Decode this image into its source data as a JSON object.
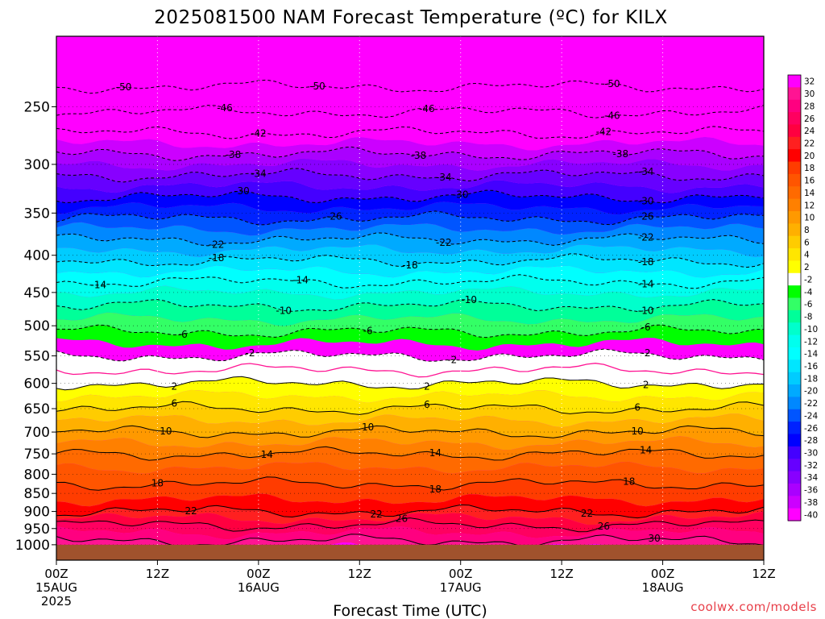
{
  "title": "2025081500 NAM Forecast Temperature (ºC) for KILX",
  "credit": "coolwx.com/models",
  "chart_data": {
    "type": "heatmap",
    "title": "2025081500 NAM Forecast Temperature (ºC) for KILX",
    "xlabel": "Forecast Time (UTC)",
    "ylabel": "",
    "grid": true,
    "legend": "colorbar right",
    "y_scale": "log-pressure (inverted)",
    "x_range_hours": [
      0,
      84
    ],
    "y_range_hPa": [
      1050,
      200
    ],
    "ground_below_hPa": 1000,
    "y_ticks": [
      250,
      300,
      350,
      400,
      450,
      500,
      550,
      600,
      650,
      700,
      750,
      800,
      850,
      900,
      950,
      1000
    ],
    "x_ticks": [
      {
        "hour": 0,
        "lines": [
          "00Z",
          "15AUG",
          "2025"
        ]
      },
      {
        "hour": 12,
        "lines": [
          "12Z"
        ]
      },
      {
        "hour": 24,
        "lines": [
          "00Z",
          "16AUG"
        ]
      },
      {
        "hour": 36,
        "lines": [
          "12Z"
        ]
      },
      {
        "hour": 48,
        "lines": [
          "00Z",
          "17AUG"
        ]
      },
      {
        "hour": 60,
        "lines": [
          "12Z"
        ]
      },
      {
        "hour": 72,
        "lines": [
          "00Z",
          "18AUG"
        ]
      },
      {
        "hour": 84,
        "lines": [
          "12Z"
        ]
      }
    ],
    "colorbar": {
      "labels": [
        "32",
        "30",
        "28",
        "26",
        "24",
        "22",
        "20",
        "18",
        "16",
        "14",
        "12",
        "10",
        "8",
        "6",
        "4",
        "2",
        "-2",
        "-4",
        "-6",
        "-8",
        "-10",
        "-12",
        "-14",
        "-16",
        "-18",
        "-20",
        "-22",
        "-24",
        "-26",
        "-28",
        "-30",
        "-32",
        "-34",
        "-36",
        "-38",
        "-40"
      ],
      "colors": [
        "#ff00ff",
        "#ff1493",
        "#ff0080",
        "#ff0060",
        "#ff0040",
        "#ff2020",
        "#ff0000",
        "#ff3c00",
        "#ff5500",
        "#ff6a00",
        "#ff8000",
        "#ff9900",
        "#ffb000",
        "#ffcc00",
        "#ffe600",
        "#ffff00",
        "#ffffff",
        "#00ff00",
        "#33ff66",
        "#00ff99",
        "#00ffcc",
        "#00ffee",
        "#00ffff",
        "#00e6ff",
        "#00ccff",
        "#00aaff",
        "#0088ff",
        "#0055ff",
        "#0022ff",
        "#0000ff",
        "#4400ff",
        "#6600ff",
        "#8800ff",
        "#aa00ff",
        "#cc00ff",
        "#ff00ff"
      ]
    },
    "temperature_profile": [
      {
        "p": 200,
        "t": -58
      },
      {
        "p": 220,
        "t": -53
      },
      {
        "p": 250,
        "t": -47
      },
      {
        "p": 300,
        "t": -36
      },
      {
        "p": 350,
        "t": -27
      },
      {
        "p": 400,
        "t": -19
      },
      {
        "p": 450,
        "t": -12
      },
      {
        "p": 500,
        "t": -7
      },
      {
        "p": 550,
        "t": -2
      },
      {
        "p": 575,
        "t": 0
      },
      {
        "p": 600,
        "t": 2
      },
      {
        "p": 650,
        "t": 6
      },
      {
        "p": 700,
        "t": 10
      },
      {
        "p": 750,
        "t": 14
      },
      {
        "p": 800,
        "t": 17
      },
      {
        "p": 850,
        "t": 19
      },
      {
        "p": 900,
        "t": 22
      },
      {
        "p": 950,
        "t": 27
      },
      {
        "p": 1000,
        "t": 31
      }
    ],
    "contours": [
      {
        "t": -50,
        "labels": [
          {
            "hour": 8,
            "text": "-50"
          },
          {
            "hour": 31,
            "text": "-50"
          },
          {
            "hour": 66,
            "text": "-50"
          }
        ]
      },
      {
        "t": -46,
        "labels": [
          {
            "hour": 20,
            "text": "-46"
          },
          {
            "hour": 44,
            "text": "-46"
          },
          {
            "hour": 66,
            "text": "-46"
          }
        ]
      },
      {
        "t": -42,
        "labels": [
          {
            "hour": 24,
            "text": "-42"
          },
          {
            "hour": 65,
            "text": "-42"
          }
        ]
      },
      {
        "t": -38,
        "labels": [
          {
            "hour": 21,
            "text": "-38"
          },
          {
            "hour": 43,
            "text": "-38"
          },
          {
            "hour": 67,
            "text": "-38"
          }
        ]
      },
      {
        "t": -34,
        "labels": [
          {
            "hour": 24,
            "text": "-34"
          },
          {
            "hour": 46,
            "text": "-34"
          },
          {
            "hour": 70,
            "text": "-34"
          }
        ]
      },
      {
        "t": -30,
        "labels": [
          {
            "hour": 22,
            "text": "-30"
          },
          {
            "hour": 48,
            "text": "-30"
          },
          {
            "hour": 70,
            "text": "-30"
          }
        ]
      },
      {
        "t": -26,
        "labels": [
          {
            "hour": 33,
            "text": "-26"
          },
          {
            "hour": 70,
            "text": "-26"
          }
        ]
      },
      {
        "t": -22,
        "labels": [
          {
            "hour": 19,
            "text": "-22"
          },
          {
            "hour": 46,
            "text": "-22"
          },
          {
            "hour": 70,
            "text": "-22"
          }
        ]
      },
      {
        "t": -18,
        "labels": [
          {
            "hour": 19,
            "text": "-18"
          },
          {
            "hour": 42,
            "text": "-18"
          },
          {
            "hour": 70,
            "text": "-18"
          }
        ]
      },
      {
        "t": -14,
        "labels": [
          {
            "hour": 5,
            "text": "-14"
          },
          {
            "hour": 29,
            "text": "-14"
          },
          {
            "hour": 70,
            "text": "-14"
          }
        ]
      },
      {
        "t": -10,
        "labels": [
          {
            "hour": 27,
            "text": "-10"
          },
          {
            "hour": 49,
            "text": "-10"
          },
          {
            "hour": 70,
            "text": "-10"
          }
        ]
      },
      {
        "t": -6,
        "labels": [
          {
            "hour": 15,
            "text": "-6"
          },
          {
            "hour": 37,
            "text": "-6"
          },
          {
            "hour": 70,
            "text": "-6"
          }
        ]
      },
      {
        "t": -2,
        "labels": [
          {
            "hour": 23,
            "text": "-2"
          },
          {
            "hour": 47,
            "text": "-2"
          },
          {
            "hour": 70,
            "text": "-2"
          }
        ]
      },
      {
        "t": 2,
        "labels": [
          {
            "hour": 14,
            "text": "2"
          },
          {
            "hour": 44,
            "text": "2"
          },
          {
            "hour": 70,
            "text": "2"
          }
        ]
      },
      {
        "t": 6,
        "labels": [
          {
            "hour": 14,
            "text": "6"
          },
          {
            "hour": 44,
            "text": "6"
          },
          {
            "hour": 69,
            "text": "6"
          }
        ]
      },
      {
        "t": 10,
        "labels": [
          {
            "hour": 13,
            "text": "10"
          },
          {
            "hour": 37,
            "text": "10"
          },
          {
            "hour": 69,
            "text": "10"
          }
        ]
      },
      {
        "t": 14,
        "labels": [
          {
            "hour": 25,
            "text": "14"
          },
          {
            "hour": 45,
            "text": "14"
          },
          {
            "hour": 70,
            "text": "14"
          }
        ]
      },
      {
        "t": 18,
        "labels": [
          {
            "hour": 12,
            "text": "18"
          },
          {
            "hour": 45,
            "text": "18"
          },
          {
            "hour": 68,
            "text": "18"
          }
        ]
      },
      {
        "t": 22,
        "labels": [
          {
            "hour": 16,
            "text": "22"
          },
          {
            "hour": 38,
            "text": "22"
          },
          {
            "hour": 63,
            "text": "22"
          }
        ]
      },
      {
        "t": 26,
        "labels": [
          {
            "hour": 41,
            "text": "26"
          },
          {
            "hour": 65,
            "text": "26"
          }
        ]
      },
      {
        "t": 30,
        "labels": [
          {
            "hour": 71,
            "text": "30"
          }
        ]
      }
    ]
  }
}
